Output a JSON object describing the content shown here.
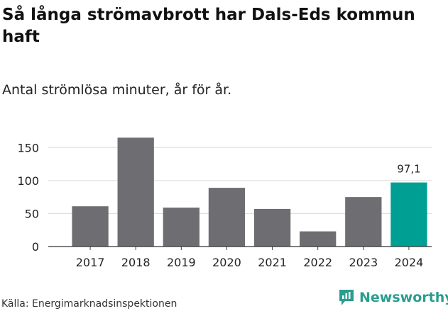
{
  "header": {
    "title": "Så långa strömavbrott har Dals-Eds kommun haft",
    "subtitle": "Antal strömlösa minuter, år för år."
  },
  "footer": {
    "source": "Källa: Energimarknadsinspektionen",
    "brand": "Newsworthy",
    "brand_icon": "newsworthy-logo-icon",
    "brand_color": "#2a9d8f"
  },
  "chart_data": {
    "type": "bar",
    "title": "Så långa strömavbrott har Dals-Eds kommun haft",
    "subtitle": "Antal strömlösa minuter, år för år.",
    "xlabel": "",
    "ylabel": "",
    "categories": [
      "2017",
      "2018",
      "2019",
      "2020",
      "2021",
      "2022",
      "2023",
      "2024"
    ],
    "values": [
      61,
      165,
      59,
      89,
      57,
      23,
      75,
      97.1
    ],
    "ylim": [
      0,
      175
    ],
    "yticks": [
      0,
      50,
      100,
      150
    ],
    "highlight_index": 7,
    "highlight_label": "97,1",
    "bar_color": "#6e6d72",
    "highlight_color": "#009f93",
    "grid": true
  }
}
